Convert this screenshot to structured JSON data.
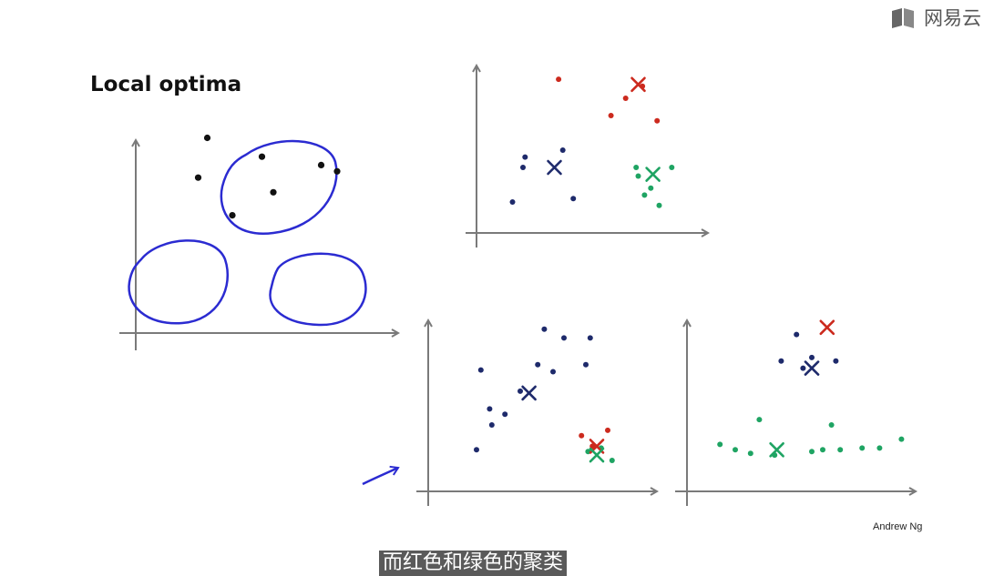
{
  "title": "Local optima",
  "watermark": "网易云",
  "credit": "Andrew Ng",
  "subtitle": "而红色和绿色的聚类",
  "colors": {
    "blue": "#1e2a6b",
    "red": "#cc2a1e",
    "green": "#1fa463",
    "black": "#111111",
    "axis": "#7a7a7a",
    "ink": "#2b2bd1"
  },
  "icons": [
    "arrow-annotation-icon",
    "watermark-logo-icon"
  ],
  "chart_data": [
    {
      "type": "scatter",
      "title": "Local optima",
      "series": [
        {
          "color": "black",
          "points": [
            [
              33,
              95
            ],
            [
              62,
              69
            ],
            [
              90,
              79
            ],
            [
              44,
              58
            ],
            [
              83,
              82
            ],
            [
              57,
              86
            ],
            [
              29,
              76
            ]
          ]
        }
      ],
      "annotation": "three circled clusters"
    },
    {
      "type": "scatter",
      "series": [
        {
          "color": "blue",
          "points": [
            [
              20,
              40
            ],
            [
              39,
              50
            ],
            [
              44,
              22
            ],
            [
              21,
              46
            ],
            [
              15,
              20
            ]
          ]
        },
        {
          "color": "red",
          "points": [
            [
              37,
              91
            ],
            [
              62,
              70
            ],
            [
              84,
              67
            ],
            [
              77,
              87
            ],
            [
              69,
              80
            ]
          ]
        },
        {
          "color": "green",
          "points": [
            [
              75,
              35
            ],
            [
              91,
              40
            ],
            [
              74,
              40
            ],
            [
              81,
              28
            ],
            [
              85,
              18
            ],
            [
              78,
              24
            ]
          ]
        }
      ],
      "centroids": [
        {
          "color": "blue",
          "x": 35,
          "y": 40
        },
        {
          "color": "red",
          "x": 75,
          "y": 88
        },
        {
          "color": "green",
          "x": 82,
          "y": 36
        }
      ]
    },
    {
      "type": "scatter",
      "series": [
        {
          "color": "blue",
          "points": [
            [
              20,
              26
            ],
            [
              27,
              40
            ],
            [
              33,
              46
            ],
            [
              40,
              59
            ],
            [
              48,
              74
            ],
            [
              51,
              94
            ],
            [
              60,
              89
            ],
            [
              55,
              70
            ],
            [
              72,
              89
            ],
            [
              70,
              74
            ],
            [
              26,
              49
            ],
            [
              22,
              71
            ]
          ]
        },
        {
          "color": "red",
          "points": [
            [
              73,
              28
            ],
            [
              80,
              37
            ],
            [
              68,
              34
            ]
          ]
        },
        {
          "color": "green",
          "points": [
            [
              82,
              20
            ],
            [
              71,
              25
            ],
            [
              77,
              27
            ]
          ]
        }
      ],
      "centroids": [
        {
          "color": "blue",
          "x": 44,
          "y": 58
        },
        {
          "color": "red",
          "x": 75,
          "y": 28
        },
        {
          "color": "green",
          "x": 75,
          "y": 23
        }
      ]
    },
    {
      "type": "scatter",
      "series": [
        {
          "color": "blue",
          "points": [
            [
              48,
              91
            ],
            [
              41,
              76
            ],
            [
              55,
              78
            ],
            [
              51,
              72
            ],
            [
              66,
              76
            ]
          ]
        },
        {
          "color": "green",
          "points": [
            [
              13,
              29
            ],
            [
              20,
              26
            ],
            [
              27,
              24
            ],
            [
              31,
              43
            ],
            [
              38,
              23
            ],
            [
              55,
              25
            ],
            [
              60,
              26
            ],
            [
              64,
              40
            ],
            [
              68,
              26
            ],
            [
              78,
              27
            ],
            [
              86,
              27
            ],
            [
              96,
              32
            ]
          ]
        }
      ],
      "centroids": [
        {
          "color": "red",
          "x": 62,
          "y": 95
        },
        {
          "color": "blue",
          "x": 55,
          "y": 72
        },
        {
          "color": "green",
          "x": 39,
          "y": 26
        }
      ]
    }
  ]
}
